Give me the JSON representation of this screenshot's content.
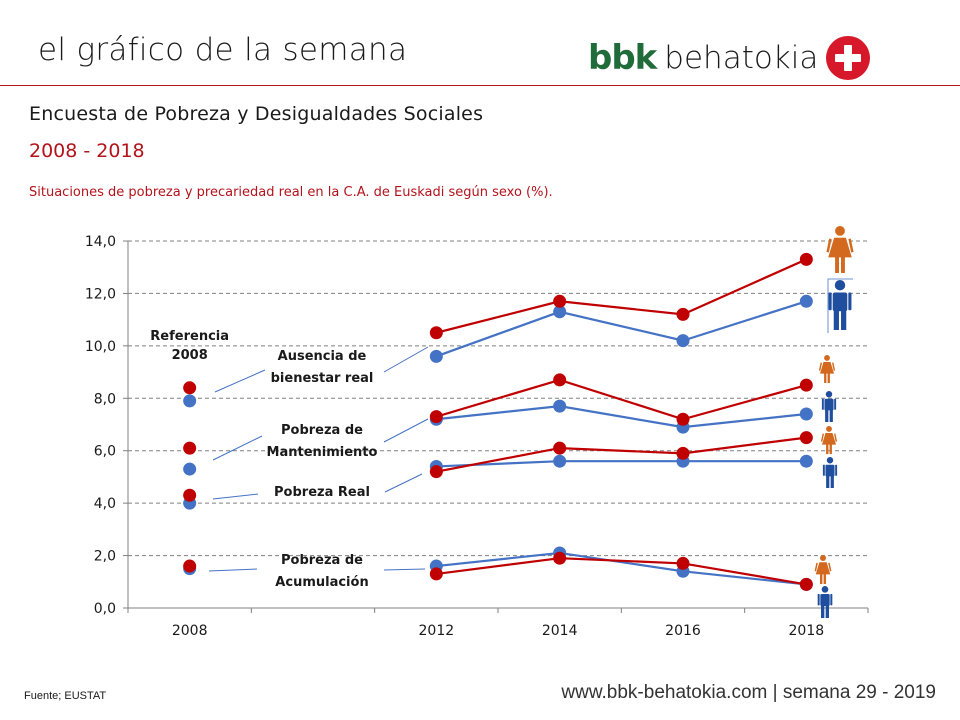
{
  "header": {
    "brand_title": "el gráfico de la semana",
    "logo_bold": "bbk",
    "logo_text": "behatokia",
    "logo_icon": "plus-circle-icon"
  },
  "titles": {
    "subtitle": "Encuesta de Pobreza y Desigualdades Sociales",
    "years": "2008 - 2018",
    "description": "Situaciones de pobreza y precariedad real en la C.A. de Euskadi según sexo (%)."
  },
  "footer": {
    "source": "Fuente; EUSTAT",
    "site": "www.bbk-behatokia.com | semana 29 - 2019"
  },
  "colors": {
    "women": "#c00000",
    "men": "#4472c4",
    "women_icon": "#d2691e",
    "men_icon": "#1f4e9e",
    "accent": "#b3131b"
  },
  "chart_data": {
    "type": "line",
    "title": "Situaciones de pobreza y precariedad real en la C.A. de Euskadi según sexo (%).",
    "xlabel": "",
    "ylabel": "",
    "categories": [
      "2008",
      "",
      "2012",
      "2014",
      "2016",
      "2018"
    ],
    "ylim": [
      0,
      14
    ],
    "yticks": [
      "0,0",
      "2,0",
      "4,0",
      "6,0",
      "8,0",
      "10,0",
      "12,0",
      "14,0"
    ],
    "grid": true,
    "reference_label": [
      "Referencia",
      "2008"
    ],
    "legend": "icons at right: woman (orange) = Mujeres, man (blue) = Hombres",
    "groups": [
      {
        "name": "Ausencia de bienestar real",
        "label_lines": [
          "Ausencia de",
          "bienestar real"
        ],
        "series": [
          {
            "name": "Mujeres",
            "values": [
              8.4,
              null,
              10.5,
              11.7,
              11.2,
              13.3
            ]
          },
          {
            "name": "Hombres",
            "values": [
              7.9,
              null,
              9.6,
              11.3,
              10.2,
              11.7
            ]
          }
        ]
      },
      {
        "name": "Pobreza de Mantenimiento",
        "label_lines": [
          "Pobreza de",
          "Mantenimiento"
        ],
        "series": [
          {
            "name": "Mujeres",
            "values": [
              6.1,
              null,
              7.3,
              8.7,
              7.2,
              8.5
            ]
          },
          {
            "name": "Hombres",
            "values": [
              5.3,
              null,
              7.2,
              7.7,
              6.9,
              7.4
            ]
          }
        ]
      },
      {
        "name": "Pobreza Real",
        "label_lines": [
          "Pobreza Real"
        ],
        "series": [
          {
            "name": "Mujeres",
            "values": [
              4.3,
              null,
              5.2,
              6.1,
              5.9,
              6.5
            ]
          },
          {
            "name": "Hombres",
            "values": [
              4.0,
              null,
              5.4,
              5.6,
              5.6,
              5.6
            ]
          }
        ]
      },
      {
        "name": "Pobreza de Acumulación",
        "label_lines": [
          "Pobreza de",
          "Acumulación"
        ],
        "series": [
          {
            "name": "Mujeres",
            "values": [
              1.6,
              null,
              1.3,
              1.9,
              1.7,
              0.9
            ]
          },
          {
            "name": "Hombres",
            "values": [
              1.5,
              null,
              1.6,
              2.1,
              1.4,
              0.9
            ]
          }
        ]
      }
    ]
  }
}
